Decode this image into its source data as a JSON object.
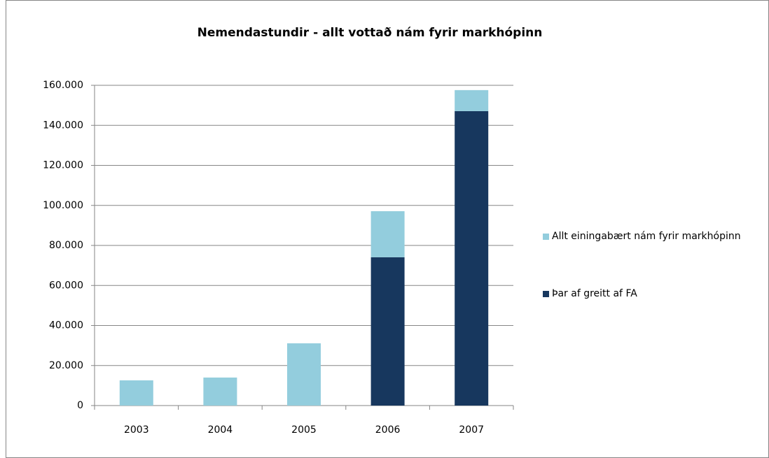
{
  "chart_data": {
    "type": "stacked_bar",
    "title": "Nemendastundir - allt vottað nám fyrir markhópinn",
    "categories": [
      "2003",
      "2004",
      "2005",
      "2006",
      "2007"
    ],
    "series": [
      {
        "name": "Allt einingabært nám fyrir markhópinn",
        "color": "#93cddd",
        "values": [
          12600,
          14000,
          31100,
          23000,
          10500
        ]
      },
      {
        "name": "Þar af greitt af FA",
        "color": "#17375e",
        "values": [
          0,
          0,
          0,
          74100,
          147100
        ]
      }
    ],
    "stack_order": [
      1,
      0
    ],
    "ylim": [
      0,
      160000
    ],
    "yticks": [
      0,
      {
        "value": 20000,
        "label": "20.000"
      },
      {
        "value": 40000,
        "label": "40.000"
      },
      {
        "value": 60000,
        "label": "60.000"
      },
      {
        "value": 80000,
        "label": "80.000"
      },
      {
        "value": 100000,
        "label": "100.000"
      },
      {
        "value": 120000,
        "label": "120.000"
      },
      {
        "value": 140000,
        "label": "140.000"
      },
      {
        "value": 160000,
        "label": "160.000"
      }
    ],
    "grid": true,
    "legend": "right"
  }
}
